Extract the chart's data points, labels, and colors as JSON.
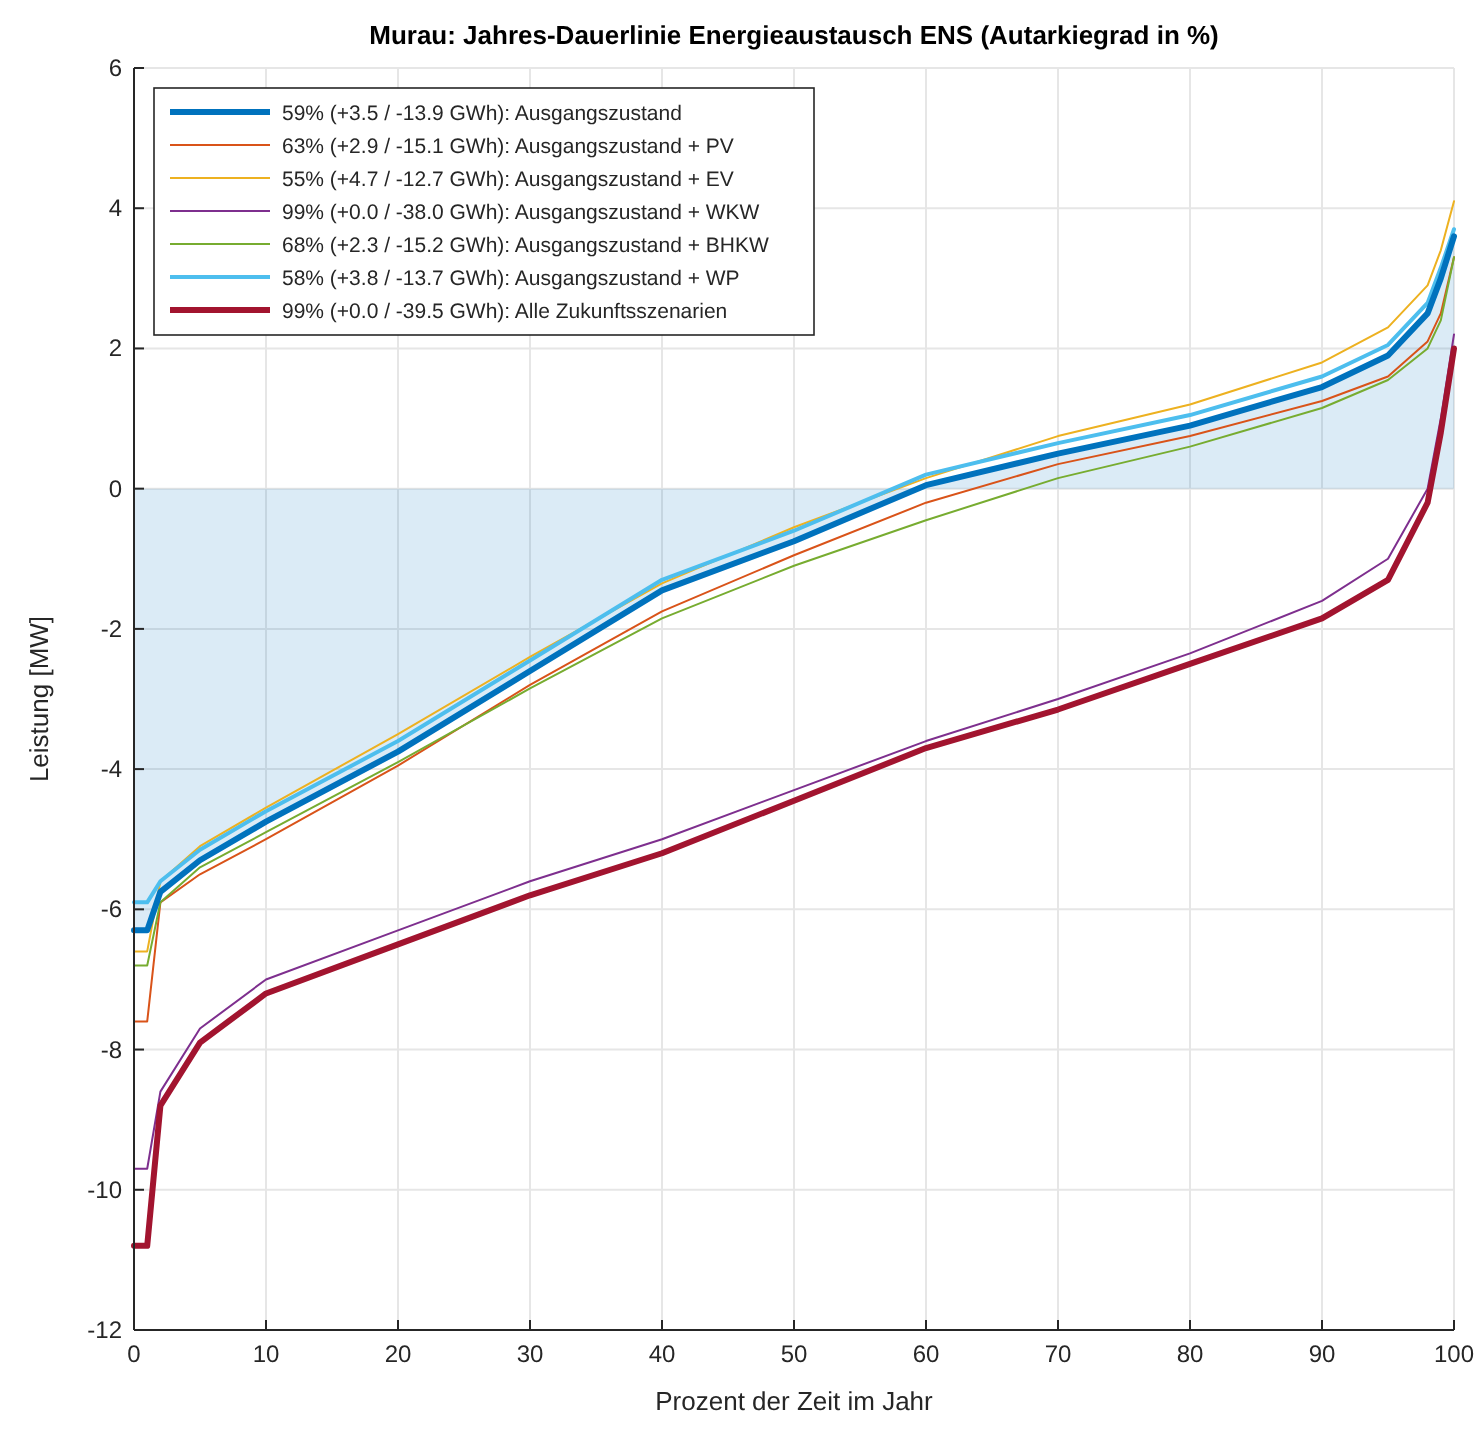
{
  "chart_data": {
    "type": "line",
    "title": "Murau: Jahres-Dauerlinie Energieaustausch ENS (Autarkiegrad in %)",
    "xlabel": "Prozent der Zeit im Jahr",
    "ylabel": "Leistung [MW]",
    "x": [
      0,
      1,
      2,
      5,
      10,
      20,
      30,
      40,
      50,
      60,
      70,
      80,
      90,
      95,
      98,
      99,
      100
    ],
    "series": [
      {
        "type": "area",
        "name": "59% (+3.5 / -13.9 GWh): Ausgangszustand",
        "color": "#0072bd",
        "values": [
          -6.3,
          -6.3,
          -5.75,
          -5.3,
          -4.75,
          -3.75,
          -2.6,
          -1.45,
          -0.75,
          0.05,
          0.5,
          0.9,
          1.45,
          1.9,
          2.5,
          3.0,
          3.6
        ]
      },
      {
        "name": "63% (+2.9 / -15.1 GWh): Ausgangszustand + PV",
        "color": "#d95319",
        "values": [
          -7.6,
          -7.6,
          -5.9,
          -5.5,
          -5.0,
          -3.95,
          -2.8,
          -1.75,
          -0.95,
          -0.2,
          0.35,
          0.75,
          1.25,
          1.6,
          2.1,
          2.5,
          3.3
        ]
      },
      {
        "name": "55% (+4.7 / -12.7 GWh): Ausgangszustand + EV",
        "color": "#edb120",
        "values": [
          -6.6,
          -6.6,
          -5.6,
          -5.1,
          -4.55,
          -3.5,
          -2.4,
          -1.35,
          -0.55,
          0.15,
          0.75,
          1.2,
          1.8,
          2.3,
          2.9,
          3.4,
          4.1
        ]
      },
      {
        "name": "99% (+0.0 / -38.0 GWh): Ausgangszustand + WKW",
        "color": "#7e2f8e",
        "values": [
          -9.7,
          -9.7,
          -8.6,
          -7.7,
          -7.0,
          -6.3,
          -5.6,
          -5.0,
          -4.3,
          -3.6,
          -3.0,
          -2.35,
          -1.6,
          -1.0,
          0.0,
          1.0,
          2.2
        ]
      },
      {
        "name": "68% (+2.3 / -15.2 GWh): Ausgangszustand + BHKW",
        "color": "#77ac30",
        "values": [
          -6.8,
          -6.8,
          -5.9,
          -5.4,
          -4.9,
          -3.9,
          -2.85,
          -1.85,
          -1.1,
          -0.45,
          0.15,
          0.6,
          1.15,
          1.55,
          2.0,
          2.4,
          3.3
        ]
      },
      {
        "name": "58% (+3.8 / -13.7 GWh): Ausgangszustand + WP",
        "color": "#4dbeee",
        "values": [
          -5.9,
          -5.9,
          -5.6,
          -5.15,
          -4.6,
          -3.6,
          -2.45,
          -1.3,
          -0.6,
          0.2,
          0.65,
          1.05,
          1.6,
          2.05,
          2.65,
          3.15,
          3.7
        ]
      },
      {
        "name": "99% (+0.0 / -39.5 GWh): Alle Zukunftsszenarien",
        "color": "#a2142f",
        "values": [
          -10.8,
          -10.8,
          -8.8,
          -7.9,
          -7.2,
          -6.5,
          -5.8,
          -5.2,
          -4.45,
          -3.7,
          -3.15,
          -2.5,
          -1.85,
          -1.3,
          -0.2,
          0.8,
          2.0
        ]
      }
    ],
    "xlim": [
      0,
      100
    ],
    "xticks": [
      0,
      10,
      20,
      30,
      40,
      50,
      60,
      70,
      80,
      90,
      100
    ],
    "ylim": [
      -12,
      6
    ],
    "yticks": [
      -12,
      -10,
      -8,
      -6,
      -4,
      -2,
      0,
      2,
      4,
      6
    ],
    "grid": true,
    "legend": "top left",
    "marker": "none",
    "line_style": "solid"
  }
}
